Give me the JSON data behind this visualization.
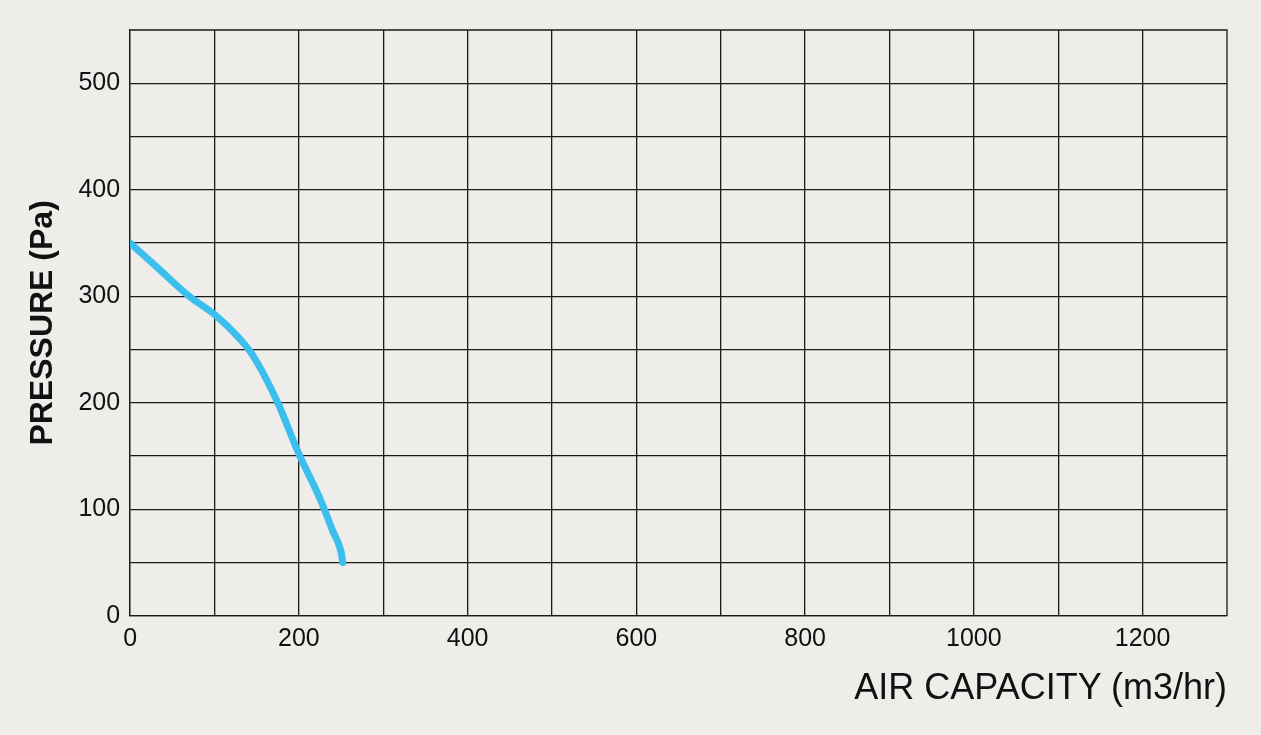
{
  "chart_data": {
    "type": "line",
    "xlabel": "AIR CAPACITY (m3/hr)",
    "ylabel": "PRESSURE (Pa)",
    "x": [
      0,
      35,
      70,
      100,
      130,
      145,
      175,
      200,
      225,
      240,
      250,
      252
    ],
    "series": [
      {
        "color": "#3dbfee",
        "values": [
          350,
          325,
          300,
          283,
          260,
          245,
          200,
          152,
          110,
          80,
          60,
          50
        ]
      }
    ],
    "xlim": [
      0,
      1300
    ],
    "xticks": [
      0,
      {
        "value": 100,
        "label": null
      },
      200,
      {
        "value": 300,
        "label": null
      },
      400,
      {
        "value": 500,
        "label": null
      },
      600,
      {
        "value": 700,
        "label": null
      },
      800,
      {
        "value": 900,
        "label": null
      },
      1000,
      {
        "value": 1100,
        "label": null
      },
      1200
    ],
    "ylim": [
      0,
      550
    ],
    "yticks": [
      0,
      {
        "value": 50,
        "label": null
      },
      100,
      {
        "value": 150,
        "label": null
      },
      200,
      {
        "value": 250,
        "label": null
      },
      300,
      {
        "value": 350,
        "label": null
      },
      400,
      {
        "value": 450,
        "label": null
      },
      500
    ],
    "grid": true,
    "marker": "none",
    "line_style": "solid",
    "legend": false
  }
}
